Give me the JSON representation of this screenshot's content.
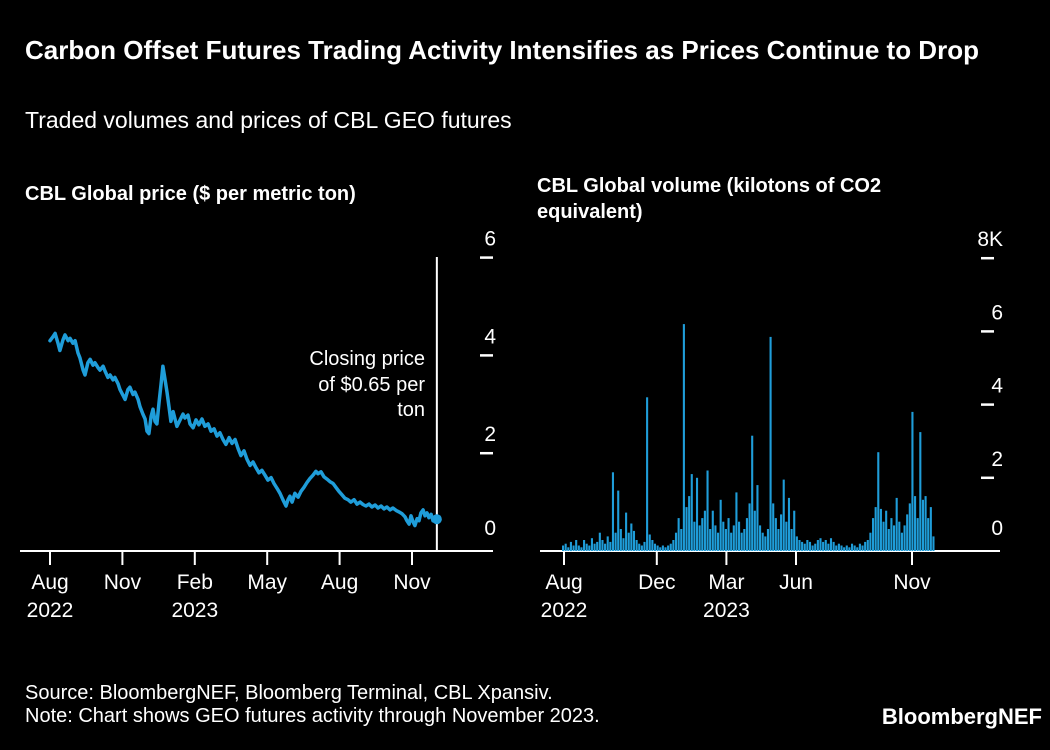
{
  "header": {
    "title": "Carbon Offset Futures Trading Activity Intensifies as Prices Continue to Drop",
    "subtitle": "Traded volumes and prices of CBL GEO futures"
  },
  "footer": {
    "source": "Source: BloombergNEF, Bloomberg Terminal, CBL Xpansiv.",
    "note": "Note: Chart shows GEO futures activity through November 2023.",
    "logo": "BloombergNEF"
  },
  "colors": {
    "background": "#000000",
    "text": "#ffffff",
    "axis": "#ffffff",
    "series": "#1f9dd9"
  },
  "chart_data": [
    {
      "id": "price",
      "type": "line",
      "title": "CBL Global price ($ per metric ton)",
      "x_unit": "months since Aug 2022",
      "ylim": [
        0,
        6
      ],
      "legend": "none",
      "grid": "off",
      "annotation": {
        "lines": [
          "Closing price",
          "of $0.65 per",
          "ton"
        ]
      },
      "last_price": 0.65,
      "marker_m": 16.03,
      "x_ticks": [
        {
          "label": "Aug",
          "sub": "2022",
          "m": 0
        },
        {
          "label": "Nov",
          "m": 3
        },
        {
          "label": "Feb",
          "sub": "2023",
          "m": 6
        },
        {
          "label": "May",
          "m": 9
        },
        {
          "label": "Aug",
          "m": 12
        },
        {
          "label": "Nov",
          "m": 15
        }
      ],
      "y_ticks": [
        {
          "label": "6",
          "v": 6
        },
        {
          "label": "4",
          "v": 4
        },
        {
          "label": "2",
          "v": 2
        },
        {
          "label": "0",
          "v": 0
        }
      ],
      "points": [
        [
          0,
          4.3
        ],
        [
          0.12,
          4.38
        ],
        [
          0.21,
          4.45
        ],
        [
          0.33,
          4.25
        ],
        [
          0.41,
          4.1
        ],
        [
          0.54,
          4.32
        ],
        [
          0.62,
          4.42
        ],
        [
          0.75,
          4.3
        ],
        [
          0.83,
          4.35
        ],
        [
          0.95,
          4.25
        ],
        [
          1.04,
          4.3
        ],
        [
          1.16,
          4.05
        ],
        [
          1.24,
          3.95
        ],
        [
          1.37,
          3.7
        ],
        [
          1.45,
          3.6
        ],
        [
          1.57,
          3.85
        ],
        [
          1.66,
          3.92
        ],
        [
          1.78,
          3.8
        ],
        [
          1.86,
          3.85
        ],
        [
          1.99,
          3.75
        ],
        [
          2.07,
          3.7
        ],
        [
          2.2,
          3.78
        ],
        [
          2.28,
          3.68
        ],
        [
          2.4,
          3.55
        ],
        [
          2.49,
          3.6
        ],
        [
          2.61,
          3.5
        ],
        [
          2.69,
          3.55
        ],
        [
          2.82,
          3.42
        ],
        [
          2.9,
          3.3
        ],
        [
          3.03,
          3.18
        ],
        [
          3.11,
          3.1
        ],
        [
          3.23,
          3.3
        ],
        [
          3.31,
          3.35
        ],
        [
          3.44,
          3.2
        ],
        [
          3.52,
          3.25
        ],
        [
          3.65,
          3.1
        ],
        [
          3.73,
          2.95
        ],
        [
          3.85,
          2.8
        ],
        [
          3.94,
          2.7
        ],
        [
          4.02,
          2.45
        ],
        [
          4.1,
          2.4
        ],
        [
          4.19,
          2.75
        ],
        [
          4.27,
          2.9
        ],
        [
          4.35,
          2.65
        ],
        [
          4.43,
          2.6
        ],
        [
          4.52,
          3.05
        ],
        [
          4.6,
          3.4
        ],
        [
          4.68,
          3.78
        ],
        [
          4.77,
          3.5
        ],
        [
          4.85,
          3.25
        ],
        [
          4.93,
          2.95
        ],
        [
          5.01,
          2.65
        ],
        [
          5.1,
          2.85
        ],
        [
          5.18,
          2.7
        ],
        [
          5.26,
          2.55
        ],
        [
          5.39,
          2.68
        ],
        [
          5.51,
          2.8
        ],
        [
          5.59,
          2.72
        ],
        [
          5.72,
          2.78
        ],
        [
          5.8,
          2.6
        ],
        [
          5.93,
          2.52
        ],
        [
          6.05,
          2.68
        ],
        [
          6.17,
          2.58
        ],
        [
          6.3,
          2.7
        ],
        [
          6.42,
          2.55
        ],
        [
          6.55,
          2.6
        ],
        [
          6.67,
          2.45
        ],
        [
          6.8,
          2.5
        ],
        [
          6.92,
          2.35
        ],
        [
          7.04,
          2.42
        ],
        [
          7.17,
          2.28
        ],
        [
          7.29,
          2.18
        ],
        [
          7.42,
          2.32
        ],
        [
          7.54,
          2.2
        ],
        [
          7.67,
          2.28
        ],
        [
          7.79,
          2.1
        ],
        [
          7.91,
          1.95
        ],
        [
          8.04,
          2.05
        ],
        [
          8.16,
          1.88
        ],
        [
          8.29,
          1.75
        ],
        [
          8.41,
          1.82
        ],
        [
          8.54,
          1.7
        ],
        [
          8.66,
          1.6
        ],
        [
          8.78,
          1.65
        ],
        [
          8.91,
          1.55
        ],
        [
          9.03,
          1.45
        ],
        [
          9.16,
          1.5
        ],
        [
          9.28,
          1.38
        ],
        [
          9.41,
          1.28
        ],
        [
          9.53,
          1.18
        ],
        [
          9.65,
          1.05
        ],
        [
          9.78,
          0.92
        ],
        [
          9.86,
          1.05
        ],
        [
          9.94,
          1.12
        ],
        [
          10.03,
          1.0
        ],
        [
          10.15,
          1.18
        ],
        [
          10.28,
          1.1
        ],
        [
          10.4,
          1.22
        ],
        [
          10.52,
          1.3
        ],
        [
          10.65,
          1.4
        ],
        [
          10.77,
          1.48
        ],
        [
          10.9,
          1.55
        ],
        [
          11.02,
          1.63
        ],
        [
          11.1,
          1.58
        ],
        [
          11.23,
          1.62
        ],
        [
          11.35,
          1.52
        ],
        [
          11.48,
          1.47
        ],
        [
          11.6,
          1.42
        ],
        [
          11.73,
          1.38
        ],
        [
          11.85,
          1.3
        ],
        [
          11.97,
          1.22
        ],
        [
          12.1,
          1.15
        ],
        [
          12.22,
          1.08
        ],
        [
          12.35,
          1.05
        ],
        [
          12.47,
          1.0
        ],
        [
          12.6,
          1.05
        ],
        [
          12.72,
          0.96
        ],
        [
          12.85,
          1.0
        ],
        [
          12.97,
          0.95
        ],
        [
          13.09,
          0.92
        ],
        [
          13.22,
          0.96
        ],
        [
          13.34,
          0.9
        ],
        [
          13.47,
          0.94
        ],
        [
          13.59,
          0.88
        ],
        [
          13.72,
          0.92
        ],
        [
          13.84,
          0.86
        ],
        [
          13.96,
          0.9
        ],
        [
          14.09,
          0.84
        ],
        [
          14.21,
          0.88
        ],
        [
          14.34,
          0.83
        ],
        [
          14.46,
          0.8
        ],
        [
          14.59,
          0.76
        ],
        [
          14.71,
          0.7
        ],
        [
          14.79,
          0.62
        ],
        [
          14.88,
          0.55
        ],
        [
          14.96,
          0.72
        ],
        [
          15.04,
          0.6
        ],
        [
          15.12,
          0.52
        ],
        [
          15.21,
          0.66
        ],
        [
          15.29,
          0.62
        ],
        [
          15.37,
          0.78
        ],
        [
          15.46,
          0.84
        ],
        [
          15.54,
          0.72
        ],
        [
          15.62,
          0.78
        ],
        [
          15.7,
          0.68
        ],
        [
          15.79,
          0.75
        ],
        [
          15.87,
          0.62
        ],
        [
          15.95,
          0.68
        ],
        [
          16.03,
          0.65
        ]
      ]
    },
    {
      "id": "volume",
      "type": "bar",
      "title": "CBL Global volume (kilotons of CO2 equivalent)",
      "x_unit": "months since Aug 2022",
      "ylim": [
        0,
        8
      ],
      "legend": "none",
      "grid": "off",
      "x_ticks": [
        {
          "label": "Aug",
          "sub": "2022",
          "m": 0
        },
        {
          "label": "Dec",
          "m": 4
        },
        {
          "label": "Mar",
          "sub": "2023",
          "m": 7
        },
        {
          "label": "Jun",
          "m": 10
        },
        {
          "label": "Nov",
          "m": 15
        }
      ],
      "y_ticks": [
        {
          "label": "8K",
          "v": 8
        },
        {
          "label": "6",
          "v": 6
        },
        {
          "label": "4",
          "v": 4
        },
        {
          "label": "2",
          "v": 2
        },
        {
          "label": "0",
          "v": 0
        }
      ],
      "values": [
        0.15,
        0.2,
        0.1,
        0.25,
        0.15,
        0.3,
        0.15,
        0.1,
        0.3,
        0.2,
        0.15,
        0.35,
        0.2,
        0.25,
        0.5,
        0.3,
        0.2,
        0.4,
        0.25,
        2.15,
        0.5,
        1.65,
        0.6,
        0.35,
        1.05,
        0.5,
        0.75,
        0.55,
        0.3,
        0.2,
        0.15,
        0.25,
        4.2,
        0.45,
        0.3,
        0.2,
        0.15,
        0.1,
        0.15,
        0.1,
        0.15,
        0.2,
        0.3,
        0.5,
        0.9,
        0.6,
        6.2,
        1.2,
        1.5,
        2.1,
        0.8,
        2.0,
        0.7,
        0.9,
        1.1,
        2.2,
        0.6,
        1.1,
        0.7,
        0.5,
        1.4,
        0.8,
        0.6,
        0.9,
        0.5,
        0.7,
        1.6,
        0.8,
        0.5,
        0.6,
        0.9,
        1.3,
        3.15,
        1.1,
        1.8,
        0.7,
        0.5,
        0.4,
        0.6,
        5.85,
        1.3,
        0.9,
        0.6,
        1.0,
        1.95,
        0.8,
        1.45,
        0.6,
        1.1,
        0.4,
        0.3,
        0.25,
        0.2,
        0.3,
        0.25,
        0.15,
        0.2,
        0.3,
        0.35,
        0.25,
        0.3,
        0.2,
        0.35,
        0.25,
        0.15,
        0.2,
        0.15,
        0.1,
        0.15,
        0.1,
        0.2,
        0.15,
        0.1,
        0.2,
        0.15,
        0.25,
        0.3,
        0.5,
        0.9,
        1.2,
        2.7,
        1.15,
        0.8,
        1.1,
        0.6,
        0.9,
        0.7,
        1.45,
        0.8,
        0.5,
        0.7,
        1.0,
        1.3,
        3.8,
        1.5,
        0.9,
        3.25,
        1.4,
        1.5,
        0.9,
        1.2,
        0.4
      ]
    }
  ]
}
